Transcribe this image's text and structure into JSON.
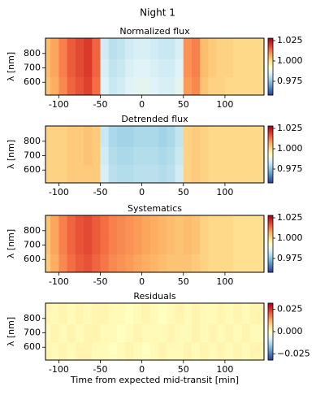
{
  "title": "Night 1",
  "chart_data": [
    {
      "type": "heatmap",
      "title": "Normalized flux",
      "ylabel": "λ [nm]",
      "x": [
        -115,
        -105,
        -95,
        -85,
        -75,
        -65,
        -55,
        -45,
        -35,
        -25,
        -15,
        -5,
        5,
        15,
        25,
        35,
        45,
        55,
        65,
        75,
        85,
        95,
        105,
        115,
        125,
        135
      ],
      "y": [
        575,
        700,
        825
      ],
      "values": [
        [
          1.004,
          1.007,
          1.011,
          1.015,
          1.017,
          1.019,
          1.014,
          0.986,
          0.983,
          0.984,
          0.986,
          0.987,
          0.987,
          0.986,
          0.985,
          0.985,
          0.987,
          1.009,
          1.011,
          1.004,
          1.002,
          1.002,
          1.001,
          1.001,
          1.001,
          1.001
        ],
        [
          1.005,
          1.008,
          1.012,
          1.016,
          1.018,
          1.02,
          1.015,
          0.985,
          0.982,
          0.983,
          0.985,
          0.986,
          0.986,
          0.985,
          0.984,
          0.984,
          0.986,
          1.01,
          1.012,
          1.005,
          1.003,
          1.002,
          1.002,
          1.001,
          1.001,
          1.001
        ],
        [
          1.005,
          1.008,
          1.012,
          1.016,
          1.018,
          1.02,
          1.015,
          0.984,
          0.981,
          0.982,
          0.984,
          0.985,
          0.985,
          0.984,
          0.983,
          0.983,
          0.985,
          1.01,
          1.012,
          1.005,
          1.003,
          1.002,
          1.002,
          1.001,
          1.001,
          1.001
        ]
      ],
      "xlim": [
        -116,
        147
      ],
      "xticks": [
        -100,
        -50,
        0,
        50,
        100
      ],
      "ylim": [
        511,
        906
      ],
      "yticks": [
        600,
        700,
        800
      ],
      "clim": [
        0.958,
        1.028
      ],
      "cticks": [
        0.975,
        {
          "value": 1,
          "label": "1.000"
        },
        1.025
      ]
    },
    {
      "type": "heatmap",
      "title": "Detrended flux",
      "ylabel": "λ [nm]",
      "x": [
        -115,
        -105,
        -95,
        -85,
        -75,
        -65,
        -55,
        -45,
        -35,
        -25,
        -15,
        -5,
        5,
        15,
        25,
        35,
        45,
        55,
        65,
        75,
        85,
        95,
        105,
        115,
        125,
        135
      ],
      "y": [
        575,
        700,
        825
      ],
      "values": [
        [
          1.002,
          1.002,
          1.002,
          1.003,
          1.003,
          1.003,
          1.003,
          0.985,
          0.981,
          0.98,
          0.98,
          0.981,
          0.981,
          0.981,
          0.98,
          0.981,
          0.984,
          1.002,
          1.003,
          1.002,
          1.001,
          1.001,
          1.001,
          1.001,
          1.001,
          1.001
        ],
        [
          1.002,
          1.002,
          1.002,
          1.003,
          1.003,
          1.004,
          1.003,
          0.984,
          0.98,
          0.979,
          0.979,
          0.98,
          0.98,
          0.98,
          0.979,
          0.98,
          0.983,
          1.002,
          1.003,
          1.002,
          1.001,
          1.001,
          1.001,
          1.001,
          1.001,
          1.001
        ],
        [
          1.002,
          1.002,
          1.002,
          1.003,
          1.003,
          1.004,
          1.003,
          0.983,
          0.979,
          0.978,
          0.978,
          0.979,
          0.979,
          0.979,
          0.978,
          0.979,
          0.982,
          1.002,
          1.003,
          1.002,
          1.001,
          1.001,
          1.001,
          1.001,
          1.001,
          1.001
        ]
      ],
      "xlim": [
        -116,
        147
      ],
      "xticks": [
        -100,
        -50,
        0,
        50,
        100
      ],
      "ylim": [
        511,
        906
      ],
      "yticks": [
        600,
        700,
        800
      ],
      "clim": [
        0.958,
        1.028
      ],
      "cticks": [
        0.975,
        {
          "value": 1,
          "label": "1.000"
        },
        1.025
      ]
    },
    {
      "type": "heatmap",
      "title": "Systematics",
      "ylabel": "λ [nm]",
      "x": [
        -115,
        -105,
        -95,
        -85,
        -75,
        -65,
        -55,
        -45,
        -35,
        -25,
        -15,
        -5,
        5,
        15,
        25,
        35,
        45,
        55,
        65,
        75,
        85,
        95,
        105,
        115,
        125,
        135
      ],
      "y": [
        575,
        700,
        825
      ],
      "values": [
        [
          1.003,
          1.007,
          1.011,
          1.014,
          1.016,
          1.017,
          1.015,
          1.013,
          1.011,
          1.01,
          1.009,
          1.008,
          1.007,
          1.006,
          1.005,
          1.004,
          1.004,
          1.004,
          1.003,
          1.002,
          1.001,
          1.001,
          1.001,
          1.0,
          1.0,
          1.0
        ],
        [
          1.004,
          1.008,
          1.012,
          1.015,
          1.017,
          1.018,
          1.016,
          1.014,
          1.012,
          1.011,
          1.01,
          1.009,
          1.008,
          1.007,
          1.006,
          1.005,
          1.004,
          1.005,
          1.004,
          1.002,
          1.001,
          1.001,
          1.001,
          1.0,
          1.0,
          1.0
        ],
        [
          1.004,
          1.008,
          1.012,
          1.015,
          1.017,
          1.018,
          1.016,
          1.014,
          1.012,
          1.011,
          1.01,
          1.009,
          1.008,
          1.007,
          1.006,
          1.005,
          1.004,
          1.005,
          1.004,
          1.002,
          1.001,
          1.001,
          1.001,
          1.0,
          1.0,
          1.0
        ]
      ],
      "xlim": [
        -116,
        147
      ],
      "xticks": [
        -100,
        -50,
        0,
        50,
        100
      ],
      "ylim": [
        511,
        906
      ],
      "yticks": [
        600,
        700,
        800
      ],
      "clim": [
        0.958,
        1.028
      ],
      "cticks": [
        0.975,
        {
          "value": 1,
          "label": "1.000"
        },
        1.025
      ]
    },
    {
      "type": "heatmap",
      "title": "Residuals",
      "ylabel": "λ [nm]",
      "xlabel": "Time from expected mid-transit [min]",
      "x": [
        -115,
        -105,
        -95,
        -85,
        -75,
        -65,
        -55,
        -45,
        -35,
        -25,
        -15,
        -5,
        5,
        15,
        25,
        35,
        45,
        55,
        65,
        75,
        85,
        95,
        105,
        115,
        125,
        135
      ],
      "y": [
        575,
        700,
        825
      ],
      "values": [
        [
          0.002,
          0.001,
          0.002,
          0.001,
          0.002,
          0.002,
          0.001,
          0.001,
          0.0,
          0.001,
          0.002,
          0.001,
          0.0,
          0.001,
          0.002,
          0.001,
          0.001,
          0.002,
          0.001,
          0.002,
          0.001,
          0.002,
          0.001,
          0.002,
          0.001,
          0.002
        ],
        [
          0.001,
          0.002,
          0.001,
          0.002,
          0.001,
          0.002,
          0.002,
          0.001,
          0.001,
          0.0,
          0.001,
          0.002,
          0.001,
          0.001,
          0.001,
          0.002,
          0.001,
          0.001,
          0.002,
          0.001,
          0.002,
          0.001,
          0.002,
          0.001,
          0.002,
          0.001
        ],
        [
          0.002,
          0.001,
          0.002,
          0.001,
          0.002,
          0.001,
          0.002,
          0.002,
          0.001,
          0.001,
          0.0,
          0.001,
          0.002,
          0.001,
          0.0,
          0.001,
          0.002,
          0.001,
          0.002,
          0.001,
          0.001,
          0.002,
          0.001,
          0.002,
          0.001,
          0.002
        ]
      ],
      "xlim": [
        -116,
        147
      ],
      "xticks": [
        -100,
        -50,
        0,
        50,
        100
      ],
      "ylim": [
        511,
        906
      ],
      "yticks": [
        600,
        700,
        800
      ],
      "clim": [
        -0.032,
        0.032
      ],
      "cticks": [
        {
          "value": -0.025,
          "label": "−0.025"
        },
        {
          "value": 0,
          "label": "0.000"
        },
        0.025
      ]
    }
  ],
  "colormap": [
    "#313695",
    "#4575b4",
    "#74add1",
    "#abd9e9",
    "#e0f3f8",
    "#ffffbf",
    "#fee090",
    "#fdae61",
    "#f46d43",
    "#d73027",
    "#a50026"
  ]
}
